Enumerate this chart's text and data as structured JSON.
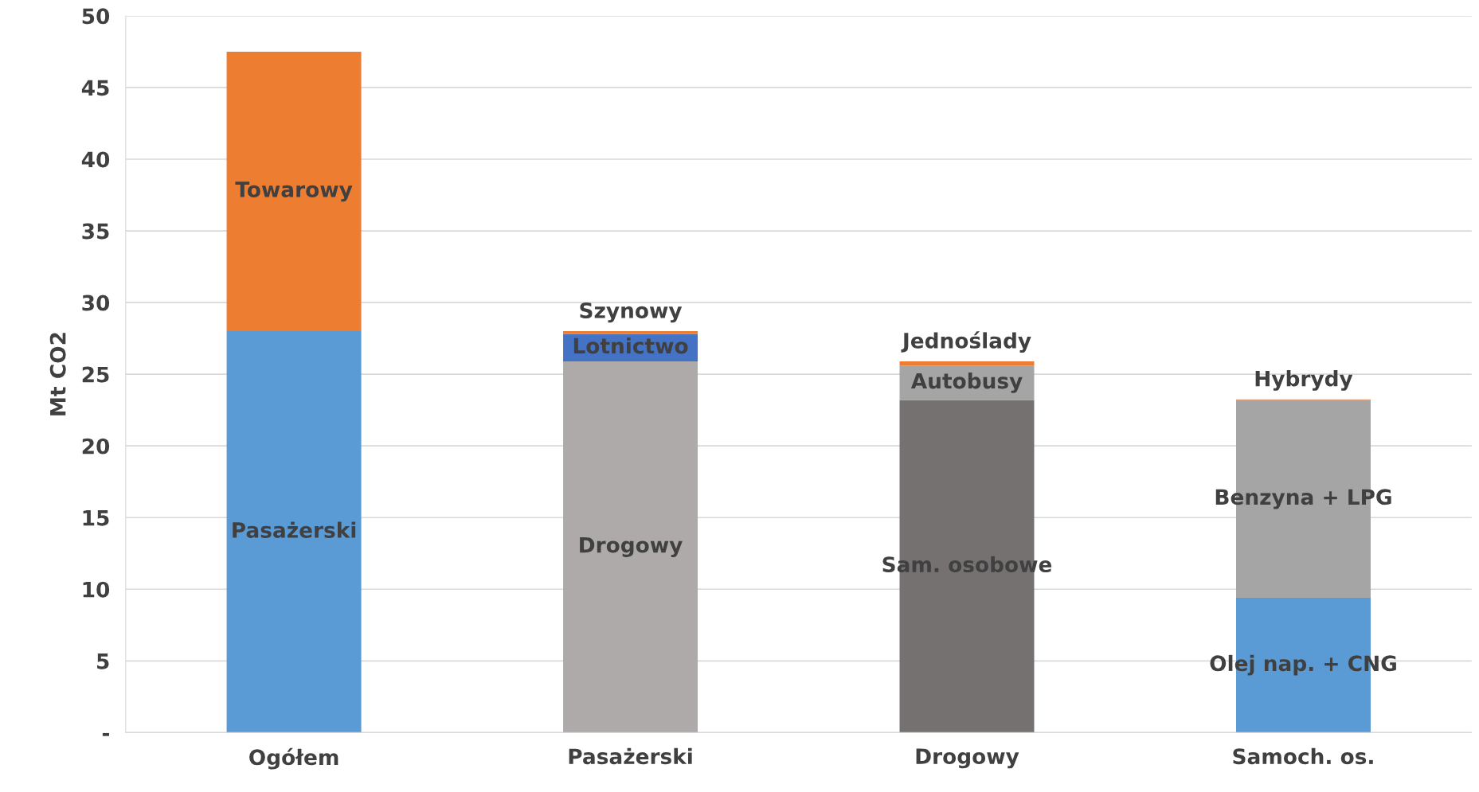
{
  "chart_data": {
    "type": "bar",
    "stacked": true,
    "ylabel": "Mt CO2",
    "categories": [
      "Ogółem",
      "Pasażerski",
      "Drogowy",
      "Samoch. os."
    ],
    "series": [
      {
        "name": "Pasażerski",
        "color": "#5b9bd5",
        "values": [
          28.0,
          null,
          null,
          null
        ]
      },
      {
        "name": "Towarowy",
        "color": "#ed7d31",
        "values": [
          19.5,
          null,
          null,
          null
        ]
      },
      {
        "name": "Drogowy",
        "color": "#aeaaaa",
        "values": [
          null,
          25.9,
          null,
          null
        ]
      },
      {
        "name": "Lotnictwo",
        "color": "#4472c4",
        "values": [
          null,
          1.9,
          null,
          null
        ]
      },
      {
        "name": "Szynowy",
        "color": "#ed7d31",
        "values": [
          null,
          0.2,
          null,
          null
        ]
      },
      {
        "name": "Sam. osobowe",
        "color": "#767171",
        "values": [
          null,
          null,
          23.2,
          null
        ]
      },
      {
        "name": "Autobusy",
        "color": "#a5a5a5",
        "values": [
          null,
          null,
          2.4,
          null
        ]
      },
      {
        "name": "Jednoślady",
        "color": "#ed7d31",
        "values": [
          null,
          null,
          0.3,
          null
        ]
      },
      {
        "name": "Olej nap. + CNG",
        "color": "#5b9bd5",
        "values": [
          null,
          null,
          null,
          9.4
        ]
      },
      {
        "name": "Benzyna + LPG",
        "color": "#a5a5a5",
        "values": [
          null,
          null,
          null,
          13.8
        ]
      },
      {
        "name": "Hybrydy",
        "color": "#ed7d31",
        "values": [
          null,
          null,
          null,
          0.05
        ]
      }
    ],
    "ylim": [
      0,
      50
    ],
    "yticks": [
      {
        "value": 0,
        "label": "-"
      },
      5,
      10,
      15,
      20,
      25,
      30,
      35,
      40,
      45,
      50
    ],
    "grid": "y",
    "legend": false
  }
}
